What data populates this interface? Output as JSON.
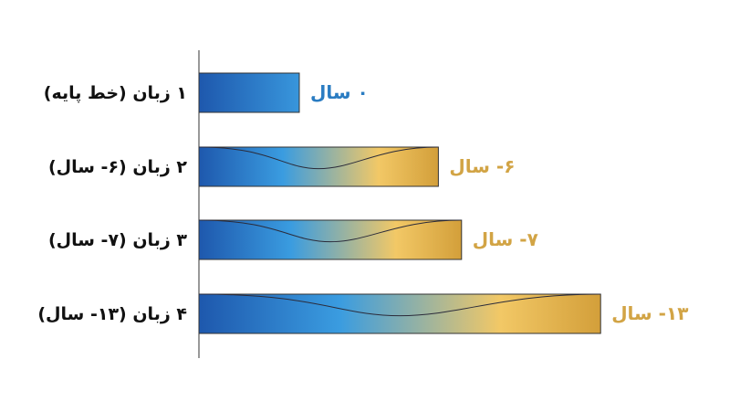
{
  "chart_data": {
    "type": "bar",
    "orientation": "horizontal",
    "categories": [
      "۱ زبان (خط پایه)",
      "۲ زبان (۶- سال)",
      "۳ زبان (۷- سال)",
      "۴ زبان (۱۳- سال)"
    ],
    "values": [
      0,
      -6,
      -7,
      -13
    ],
    "value_labels": [
      "۰ سال",
      "۶- سال",
      "۷- سال",
      "۱۳- سال"
    ],
    "label_colors": [
      "#2a7cc2",
      "#d2a445",
      "#d2a445",
      "#d2a445"
    ]
  }
}
